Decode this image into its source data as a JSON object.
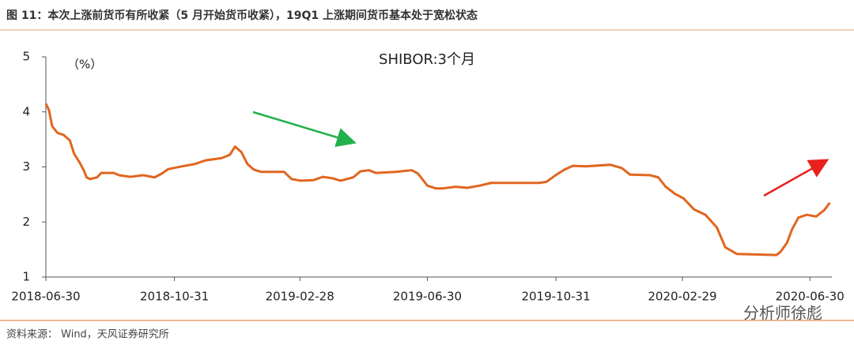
{
  "chart_data": {
    "type": "line",
    "title": "图 11：本次上涨前货币有所收紧（5 月开始货币收紧），19Q1 上涨期间货币基本处于宽松状态",
    "y_unit_label": "（%）",
    "annotation": "SHIBOR:3个月",
    "source": "资料来源： Wind，天风证券研究所",
    "watermark": "分析师徐彪",
    "x": [
      "2018-06-30",
      "2018-07-03",
      "2018-07-06",
      "2018-07-11",
      "2018-07-17",
      "2018-07-23",
      "2018-07-27",
      "2018-08-01",
      "2018-08-05",
      "2018-08-08",
      "2018-08-11",
      "2018-08-18",
      "2018-08-22",
      "2018-09-03",
      "2018-09-08",
      "2018-09-19",
      "2018-10-01",
      "2018-10-12",
      "2018-10-19",
      "2018-10-25",
      "2018-11-07",
      "2018-11-19",
      "2018-11-30",
      "2018-12-15",
      "2018-12-23",
      "2018-12-28",
      "2019-01-03",
      "2019-01-09",
      "2019-01-15",
      "2019-01-22",
      "2019-02-13",
      "2019-02-20",
      "2019-03-01",
      "2019-03-13",
      "2019-03-22",
      "2019-04-01",
      "2019-04-08",
      "2019-04-20",
      "2019-04-27",
      "2019-05-05",
      "2019-05-12",
      "2019-05-31",
      "2019-06-15",
      "2019-06-21",
      "2019-06-30",
      "2019-07-08",
      "2019-07-15",
      "2019-07-27",
      "2019-08-07",
      "2019-08-19",
      "2019-08-30",
      "2019-10-15",
      "2019-10-22",
      "2019-10-30",
      "2019-11-08",
      "2019-11-16",
      "2019-11-29",
      "2019-12-22",
      "2020-01-02",
      "2020-01-10",
      "2020-01-29",
      "2020-02-06",
      "2020-02-13",
      "2020-02-22",
      "2020-03-01",
      "2020-03-11",
      "2020-03-22",
      "2020-04-02",
      "2020-04-10",
      "2020-04-21",
      "2020-05-29",
      "2020-06-02",
      "2020-06-08",
      "2020-06-13",
      "2020-06-19",
      "2020-06-27",
      "2020-07-06",
      "2020-07-14",
      "2020-07-19"
    ],
    "series": [
      {
        "name": "SHIBOR:3个月",
        "color": "#e0661e",
        "values": [
          4.15,
          4.03,
          3.74,
          3.62,
          3.58,
          3.48,
          3.24,
          3.09,
          2.95,
          2.81,
          2.78,
          2.81,
          2.89,
          2.89,
          2.85,
          2.82,
          2.85,
          2.81,
          2.88,
          2.96,
          3.01,
          3.05,
          3.12,
          3.16,
          3.22,
          3.37,
          3.27,
          3.05,
          2.95,
          2.91,
          2.91,
          2.78,
          2.75,
          2.76,
          2.82,
          2.79,
          2.75,
          2.81,
          2.92,
          2.94,
          2.89,
          2.91,
          2.94,
          2.88,
          2.66,
          2.61,
          2.61,
          2.64,
          2.62,
          2.66,
          2.71,
          2.71,
          2.73,
          2.84,
          2.95,
          3.02,
          3.01,
          3.04,
          2.98,
          2.86,
          2.85,
          2.81,
          2.64,
          2.51,
          2.43,
          2.23,
          2.13,
          1.9,
          1.54,
          1.42,
          1.4,
          1.46,
          1.62,
          1.87,
          2.08,
          2.13,
          2.1,
          2.22,
          2.35
        ]
      }
    ],
    "xlim": [
      "2018-06-30",
      "2020-07-21"
    ],
    "xticks": [
      "2018-06-30",
      "2018-10-31",
      "2019-02-28",
      "2019-06-30",
      "2019-10-31",
      "2020-02-29",
      "2020-06-30"
    ],
    "ylim": [
      1,
      5
    ],
    "yticks": [
      1,
      2,
      3,
      4,
      5
    ]
  }
}
